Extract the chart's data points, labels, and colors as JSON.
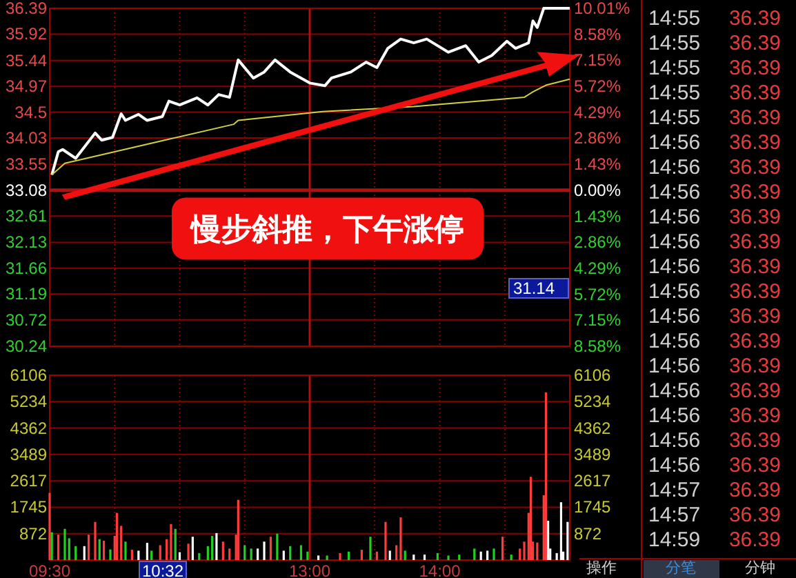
{
  "chart_data": [
    {
      "type": "line",
      "tick_labels": "y",
      "categories": [
        null,
        null,
        null,
        null,
        null,
        null,
        null,
        null,
        null,
        null,
        null,
        null,
        null,
        null,
        null,
        null,
        null,
        null,
        null,
        null,
        null,
        null,
        null,
        null,
        null,
        null,
        null,
        null,
        null,
        null,
        null,
        null,
        null,
        null,
        null,
        null,
        null,
        null,
        null,
        null,
        null,
        null,
        null,
        null,
        null,
        null,
        null,
        null,
        null,
        null,
        null,
        null,
        null,
        null,
        null,
        null,
        null,
        null,
        null,
        null,
        null,
        null,
        null,
        null,
        null,
        null,
        null,
        null,
        null,
        null,
        null,
        null,
        null,
        null,
        null,
        null,
        null,
        null,
        null,
        null,
        null,
        null,
        null,
        null,
        null,
        null,
        null,
        null,
        null,
        null,
        null,
        null,
        null,
        null,
        null,
        null,
        null,
        null,
        null,
        null,
        null,
        null,
        null,
        null,
        null,
        null,
        null,
        null,
        null,
        null,
        null,
        null,
        null,
        null,
        null,
        null,
        null,
        null,
        null,
        null,
        null,
        null,
        null,
        null,
        null,
        null,
        null,
        null,
        null,
        null,
        null,
        null,
        null,
        null,
        null,
        null,
        null,
        null,
        null,
        null,
        null,
        null,
        null,
        null,
        null,
        null,
        null,
        null,
        null,
        null,
        null,
        null,
        null,
        null,
        null,
        null,
        null,
        null,
        null,
        null,
        null,
        null,
        null,
        null,
        null,
        null,
        null,
        null,
        null,
        null,
        null,
        null,
        null,
        null,
        null,
        null,
        null,
        null,
        null,
        null,
        null,
        null,
        null,
        null,
        null,
        null,
        null,
        null,
        null,
        null,
        null,
        null,
        null,
        null,
        null,
        null,
        null,
        null,
        null,
        null,
        null,
        null,
        null,
        null,
        null,
        null,
        null,
        null,
        null,
        null,
        null,
        null,
        null,
        null,
        null,
        null,
        null,
        null,
        null,
        null,
        null,
        null,
        null,
        null,
        null,
        null,
        null,
        null,
        null,
        null,
        null,
        null,
        null,
        null,
        null,
        null,
        null,
        null,
        null,
        null,
        null
      ],
      "ylim": [
        30.24,
        36.39
      ],
      "yticks": [
        30.24,
        30.72,
        31.19,
        31.66,
        32.13,
        32.61,
        33.08,
        33.55,
        34.03,
        34.5,
        34.97,
        35.44,
        35.92,
        36.39
      ],
      "y2lim": [
        -8.58,
        10.01
      ],
      "y2ticks": [
        {
          "value": -8.58,
          "label": "8.58%"
        },
        {
          "value": -7.15,
          "label": "7.15%"
        },
        {
          "value": -5.72,
          "label": "5.72%"
        },
        {
          "value": -4.29,
          "label": "4.29%"
        },
        {
          "value": -2.86,
          "label": "2.86%"
        },
        {
          "value": -1.43,
          "label": "1.43%"
        },
        {
          "value": 0,
          "label": "0.00%"
        },
        {
          "value": 1.43,
          "label": "1.43%"
        },
        {
          "value": 2.86,
          "label": "2.86%"
        },
        {
          "value": 4.29,
          "label": "4.29%"
        },
        {
          "value": 5.72,
          "label": "5.72%"
        },
        {
          "value": 7.15,
          "label": "7.15%"
        },
        {
          "value": 8.58,
          "label": "8.58%"
        },
        {
          "value": 10.01,
          "label": "10.01%"
        }
      ],
      "grid": "y",
      "ref_lines": [
        {
          "axis": "y",
          "value": 33.08,
          "color": "#b01010"
        }
      ],
      "series": [
        {
          "color": "#ffffff",
          "values": [
            null,
            33.36,
            null,
            null,
            33.78,
            null,
            33.82,
            null,
            null,
            null,
            null,
            null,
            33.66,
            null,
            null,
            null,
            null,
            null,
            null,
            null,
            null,
            34.12,
            null,
            null,
            33.99,
            null,
            null,
            null,
            null,
            34.04,
            null,
            null,
            null,
            34.47,
            null,
            34.35,
            null,
            null,
            null,
            null,
            null,
            34.46,
            null,
            null,
            null,
            34.35,
            null,
            null,
            null,
            null,
            null,
            null,
            34.42,
            null,
            null,
            34.7,
            null,
            null,
            null,
            null,
            34.63,
            null,
            null,
            null,
            null,
            null,
            null,
            null,
            34.76,
            null,
            null,
            null,
            null,
            34.63,
            null,
            null,
            null,
            null,
            34.82,
            null,
            null,
            null,
            null,
            34.77,
            null,
            null,
            null,
            35.45,
            null,
            null,
            null,
            null,
            null,
            null,
            35.12,
            null,
            null,
            null,
            null,
            35.23,
            null,
            null,
            null,
            null,
            35.45,
            null,
            null,
            null,
            null,
            null,
            null,
            35.23,
            null,
            null,
            null,
            null,
            null,
            null,
            null,
            null,
            35.03,
            null,
            null,
            null,
            null,
            null,
            null,
            34.98,
            null,
            null,
            35.12,
            null,
            null,
            null,
            null,
            null,
            null,
            null,
            null,
            35.23,
            null,
            null,
            null,
            null,
            null,
            null,
            35.41,
            null,
            null,
            null,
            null,
            35.31,
            null,
            null,
            null,
            null,
            35.66,
            null,
            null,
            null,
            null,
            null,
            35.83,
            null,
            null,
            null,
            null,
            null,
            35.76,
            null,
            null,
            null,
            null,
            null,
            35.83,
            null,
            null,
            null,
            null,
            null,
            null,
            null,
            null,
            null,
            35.59,
            null,
            null,
            null,
            null,
            null,
            null,
            null,
            35.71,
            null,
            null,
            null,
            null,
            null,
            35.41,
            null,
            null,
            null,
            null,
            null,
            35.53,
            null,
            null,
            null,
            null,
            null,
            null,
            35.79,
            null,
            null,
            null,
            35.66,
            null,
            null,
            null,
            null,
            null,
            35.76,
            null,
            36.16,
            null,
            36.04,
            null,
            null,
            36.39,
            null,
            null,
            null,
            null,
            null,
            null,
            null,
            null,
            null,
            null,
            null,
            36.39
          ]
        },
        {
          "color": "#d0d040",
          "values": [
            null,
            33.36,
            null,
            null,
            null,
            null,
            null,
            33.57,
            null,
            null,
            null,
            null,
            null,
            null,
            null,
            null,
            null,
            null,
            null,
            null,
            null,
            null,
            null,
            null,
            null,
            null,
            null,
            null,
            null,
            null,
            33.78,
            null,
            null,
            null,
            null,
            null,
            null,
            null,
            null,
            null,
            null,
            null,
            null,
            null,
            null,
            null,
            null,
            null,
            null,
            null,
            null,
            null,
            null,
            33.99,
            null,
            null,
            null,
            null,
            null,
            null,
            null,
            null,
            null,
            null,
            null,
            null,
            null,
            null,
            null,
            null,
            null,
            null,
            null,
            null,
            null,
            null,
            null,
            null,
            null,
            null,
            null,
            null,
            null,
            null,
            null,
            34.28,
            null,
            34.35,
            null,
            null,
            null,
            null,
            null,
            null,
            null,
            null,
            null,
            null,
            null,
            null,
            null,
            null,
            null,
            null,
            null,
            null,
            null,
            null,
            null,
            null,
            null,
            null,
            null,
            null,
            null,
            null,
            null,
            null,
            null,
            null,
            null,
            null,
            null,
            null,
            null,
            null,
            34.51,
            null,
            null,
            null,
            null,
            null,
            null,
            null,
            null,
            null,
            null,
            null,
            null,
            null,
            null,
            null,
            null,
            null,
            null,
            null,
            null,
            null,
            null,
            null,
            null,
            null,
            null,
            null,
            null,
            null,
            null,
            null,
            null,
            null,
            null,
            null,
            null,
            null,
            null,
            null,
            null,
            null,
            34.6,
            null,
            null,
            null,
            null,
            null,
            null,
            null,
            null,
            null,
            null,
            null,
            null,
            null,
            null,
            null,
            null,
            null,
            null,
            null,
            null,
            null,
            null,
            null,
            null,
            null,
            null,
            null,
            null,
            null,
            null,
            null,
            null,
            null,
            null,
            null,
            null,
            null,
            null,
            null,
            null,
            null,
            null,
            null,
            null,
            null,
            null,
            null,
            null,
            null,
            null,
            34.77,
            null,
            null,
            null,
            34.87,
            null,
            null,
            null,
            null,
            null,
            34.99,
            null,
            null,
            null,
            null,
            null,
            null,
            null,
            null,
            null,
            null,
            35.1
          ]
        }
      ],
      "annotations": [
        "慢步斜推，下午涨停",
        "31.14"
      ]
    },
    {
      "type": "bar",
      "categories": [
        "09:30",
        null,
        null,
        null,
        null,
        null,
        null,
        null,
        null,
        null,
        null,
        null,
        null,
        null,
        null,
        null,
        null,
        null,
        null,
        null,
        null,
        null,
        null,
        null,
        null,
        null,
        null,
        null,
        null,
        null,
        null,
        null,
        null,
        null,
        null,
        null,
        null,
        null,
        null,
        null,
        null,
        null,
        null,
        null,
        null,
        null,
        null,
        null,
        null,
        null,
        null,
        null,
        null,
        null,
        null,
        null,
        null,
        null,
        null,
        null,
        null,
        null,
        null,
        null,
        null,
        null,
        null,
        null,
        null,
        null,
        null,
        null,
        null,
        null,
        null,
        null,
        null,
        null,
        null,
        null,
        null,
        null,
        null,
        null,
        null,
        null,
        null,
        null,
        null,
        null,
        null,
        null,
        null,
        null,
        null,
        null,
        null,
        null,
        null,
        null,
        null,
        null,
        null,
        null,
        null,
        null,
        null,
        null,
        null,
        null,
        null,
        null,
        null,
        null,
        null,
        null,
        null,
        null,
        null,
        null,
        "13:00",
        null,
        null,
        null,
        null,
        null,
        null,
        null,
        null,
        null,
        null,
        null,
        null,
        null,
        null,
        null,
        null,
        null,
        null,
        null,
        null,
        null,
        null,
        null,
        null,
        null,
        null,
        null,
        null,
        null,
        null,
        null,
        null,
        null,
        null,
        null,
        null,
        null,
        null,
        null,
        null,
        null,
        null,
        null,
        null,
        null,
        null,
        null,
        null,
        null,
        null,
        null,
        null,
        null,
        null,
        null,
        null,
        null,
        null,
        null,
        "14:00",
        null,
        null,
        null,
        null,
        null,
        null,
        null,
        null,
        null,
        null,
        null,
        null,
        null,
        null,
        null,
        null,
        null,
        null,
        null,
        null,
        null,
        null,
        null,
        null,
        null,
        null,
        null,
        null,
        null,
        null,
        null,
        null,
        null,
        null,
        null,
        null,
        null,
        null,
        null,
        null,
        null,
        null,
        null,
        null,
        null,
        null,
        null,
        null,
        null,
        null,
        null,
        null,
        null,
        null,
        null,
        null,
        null,
        null,
        null,
        null
      ],
      "ylim": [
        0,
        6106
      ],
      "yticks": [
        872,
        1745,
        2617,
        3489,
        4362,
        5234,
        6106
      ],
      "y2lim": [
        0,
        6106
      ],
      "y2ticks": [
        872,
        1745,
        2617,
        3489,
        4362,
        5234,
        6106
      ],
      "grid": "y",
      "values": [
        2220,
        920,
        null,
        null,
        840,
        null,
        null,
        1030,
        null,
        720,
        null,
        null,
        460,
        null,
        null,
        null,
        460,
        null,
        840,
        null,
        null,
        1260,
        null,
        690,
        null,
        640,
        null,
        null,
        350,
        null,
        800,
        1560,
        null,
        1130,
        null,
        610,
        null,
        null,
        340,
        null,
        null,
        310,
        null,
        null,
        null,
        570,
        null,
        310,
        null,
        null,
        null,
        490,
        null,
        null,
        690,
        null,
        1190,
        null,
        1030,
        null,
        260,
        null,
        null,
        null,
        540,
        null,
        770,
        null,
        null,
        230,
        null,
        null,
        null,
        460,
        null,
        800,
        null,
        890,
        null,
        null,
        610,
        null,
        null,
        380,
        null,
        null,
        840,
        1990,
        null,
        null,
        490,
        null,
        null,
        380,
        null,
        null,
        380,
        null,
        null,
        610,
        null,
        null,
        770,
        null,
        null,
        870,
        null,
        null,
        310,
        null,
        null,
        460,
        null,
        null,
        null,
        null,
        490,
        null,
        null,
        280,
        null,
        null,
        null,
        null,
        150,
        null,
        null,
        null,
        150,
        null,
        null,
        null,
        null,
        null,
        230,
        null,
        null,
        null,
        280,
        null,
        null,
        null,
        null,
        null,
        340,
        null,
        null,
        null,
        770,
        null,
        null,
        280,
        null,
        null,
        null,
        1260,
        null,
        310,
        null,
        null,
        490,
        null,
        1410,
        null,
        310,
        null,
        null,
        null,
        180,
        null,
        null,
        null,
        null,
        180,
        null,
        null,
        null,
        null,
        null,
        230,
        null,
        null,
        null,
        null,
        150,
        null,
        null,
        null,
        null,
        180,
        null,
        null,
        null,
        null,
        null,
        null,
        380,
        null,
        null,
        280,
        null,
        null,
        310,
        null,
        null,
        380,
        null,
        null,
        null,
        770,
        null,
        null,
        null,
        180,
        null,
        null,
        null,
        380,
        null,
        610,
        null,
        1560,
        2750,
        610,
        null,
        580,
        null,
        null,
        2140,
        5540,
        1300,
        380,
        null,
        null,
        230,
        null,
        1910,
        280,
        null,
        1260,
        null
      ],
      "colors": [
        "#ff3c3c",
        "#20d020",
        null,
        null,
        "#ff3c3c",
        null,
        null,
        "#20d020",
        null,
        "#20d020",
        null,
        null,
        "#20d020",
        null,
        null,
        null,
        "#ffffff",
        null,
        "#ff3c3c",
        null,
        null,
        "#ff3c3c",
        null,
        "#20d020",
        null,
        "#ff3c3c",
        null,
        null,
        "#20d020",
        null,
        "#ff3c3c",
        "#ff3c3c",
        null,
        "#ff3c3c",
        null,
        "#20d020",
        null,
        null,
        "#ff3c3c",
        null,
        null,
        "#ffffff",
        null,
        null,
        null,
        "#ffffff",
        null,
        "#20d020",
        null,
        null,
        null,
        "#ff3c3c",
        null,
        null,
        "#ff3c3c",
        null,
        "#ff3c3c",
        null,
        "#20d020",
        null,
        "#ffffff",
        null,
        null,
        null,
        "#ff3c3c",
        null,
        "#ffffff",
        null,
        null,
        "#20d020",
        null,
        null,
        null,
        "#20d020",
        null,
        "#20d020",
        null,
        "#ffffff",
        null,
        null,
        "#ff3c3c",
        null,
        null,
        "#ff3c3c",
        null,
        null,
        "#ff3c3c",
        "#ff3c3c",
        null,
        null,
        "#20d020",
        null,
        null,
        "#20d020",
        null,
        null,
        "#ffffff",
        null,
        null,
        "#ffffff",
        null,
        null,
        "#ff3c3c",
        null,
        null,
        "#20d020",
        null,
        null,
        "#ffffff",
        null,
        null,
        "#20d020",
        null,
        null,
        null,
        null,
        "#20d020",
        null,
        null,
        "#20d020",
        null,
        null,
        null,
        null,
        "#ffffff",
        null,
        null,
        null,
        "#20d020",
        null,
        null,
        null,
        null,
        null,
        "#ff3c3c",
        null,
        null,
        null,
        "#20d020",
        null,
        null,
        null,
        null,
        null,
        "#ff3c3c",
        null,
        null,
        null,
        "#20d020",
        null,
        null,
        "#ff3c3c",
        null,
        null,
        null,
        "#ff3c3c",
        null,
        "#ffffff",
        null,
        null,
        "#ff3c3c",
        null,
        "#ff3c3c",
        null,
        "#20d020",
        null,
        null,
        null,
        "#ffffff",
        null,
        null,
        null,
        null,
        "#ffffff",
        null,
        null,
        null,
        null,
        null,
        "#20d020",
        null,
        null,
        null,
        null,
        "#20d020",
        null,
        null,
        null,
        null,
        "#20d020",
        null,
        null,
        null,
        null,
        null,
        null,
        "#20d020",
        null,
        null,
        "#ffffff",
        null,
        null,
        "#ffffff",
        null,
        null,
        "#20d020",
        null,
        null,
        null,
        "#ff3c3c",
        null,
        null,
        null,
        "#20d020",
        null,
        null,
        null,
        "#ff3c3c",
        null,
        "#ff3c3c",
        null,
        "#ff3c3c",
        "#ff3c3c",
        "#ff3c3c",
        null,
        "#ff3c3c",
        null,
        null,
        "#ff3c3c",
        "#ff3c3c",
        "#ffffff",
        "#ffffff",
        null,
        null,
        "#ffffff",
        null,
        "#ffffff",
        "#ffffff",
        null,
        "#ffffff",
        null
      ],
      "annotations": [
        "10:32"
      ]
    },
    {
      "type": "other",
      "categories": [
        "14:55",
        "14:55",
        "14:55",
        "14:55",
        "14:55",
        "14:56",
        "14:56",
        "14:56",
        "14:56",
        "14:56",
        "14:56",
        "14:56",
        "14:56",
        "14:56",
        "14:56",
        "14:56",
        "14:56",
        "14:56",
        "14:56",
        "14:57",
        "14:57",
        "14:59"
      ],
      "values": [
        36.39,
        36.39,
        36.39,
        36.39,
        36.39,
        36.39,
        36.39,
        36.39,
        36.39,
        36.39,
        36.39,
        36.39,
        36.39,
        36.39,
        36.39,
        36.39,
        36.39,
        36.39,
        36.39,
        36.39,
        36.39,
        36.39
      ],
      "color": "#e83c3c",
      "data_labels": true,
      "annotations": [
        "操作",
        "分笔",
        "分钟"
      ]
    }
  ]
}
